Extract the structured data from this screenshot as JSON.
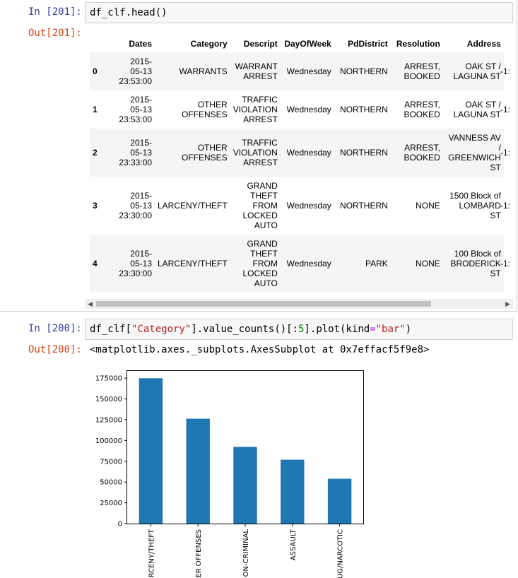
{
  "cell1": {
    "in_prompt": "In [201]:",
    "code": "df_clf.head()",
    "out_prompt": "Out[201]:",
    "columns": [
      "Dates",
      "Category",
      "Descript",
      "DayOfWeek",
      "PdDistrict",
      "Resolution",
      "Address"
    ],
    "rows": [
      {
        "index": "0",
        "cells": [
          [
            "2015-",
            "05-13",
            "23:53:00"
          ],
          [
            "WARRANTS"
          ],
          [
            "WARRANT",
            "ARREST"
          ],
          [
            "Wednesday"
          ],
          [
            "NORTHERN"
          ],
          [
            "ARREST,",
            "BOOKED"
          ],
          [
            "OAK ST /",
            "LAGUNA ST"
          ]
        ],
        "cut": "-1:"
      },
      {
        "index": "1",
        "cells": [
          [
            "2015-",
            "05-13",
            "23:53:00"
          ],
          [
            "OTHER",
            "OFFENSES"
          ],
          [
            "TRAFFIC",
            "VIOLATION",
            "ARREST"
          ],
          [
            "Wednesday"
          ],
          [
            "NORTHERN"
          ],
          [
            "ARREST,",
            "BOOKED"
          ],
          [
            "OAK ST /",
            "LAGUNA ST"
          ]
        ],
        "cut": "-1:"
      },
      {
        "index": "2",
        "cells": [
          [
            "2015-",
            "05-13",
            "23:33:00"
          ],
          [
            "OTHER",
            "OFFENSES"
          ],
          [
            "TRAFFIC",
            "VIOLATION",
            "ARREST"
          ],
          [
            "Wednesday"
          ],
          [
            "NORTHERN"
          ],
          [
            "ARREST,",
            "BOOKED"
          ],
          [
            "VANNESS AV",
            "/",
            "GREENWICH",
            "ST"
          ]
        ],
        "cut": "-1:"
      },
      {
        "index": "3",
        "cells": [
          [
            "2015-",
            "05-13",
            "23:30:00"
          ],
          [
            "LARCENY/THEFT"
          ],
          [
            "GRAND",
            "THEFT",
            "FROM",
            "LOCKED",
            "AUTO"
          ],
          [
            "Wednesday"
          ],
          [
            "NORTHERN"
          ],
          [
            "NONE"
          ],
          [
            "1500 Block of",
            "LOMBARD",
            "ST"
          ]
        ],
        "cut": "-1:"
      },
      {
        "index": "4",
        "cells": [
          [
            "2015-",
            "05-13",
            "23:30:00"
          ],
          [
            "LARCENY/THEFT"
          ],
          [
            "GRAND",
            "THEFT",
            "FROM",
            "LOCKED",
            "AUTO"
          ],
          [
            "Wednesday"
          ],
          [
            "PARK"
          ],
          [
            "NONE"
          ],
          [
            "100 Block of",
            "BRODERICK",
            "ST"
          ]
        ],
        "cut": "-1:"
      }
    ]
  },
  "cell2": {
    "in_prompt": "In [200]:",
    "code_parts": [
      {
        "text": "df_clf[",
        "color": "#000000"
      },
      {
        "text": "\"Category\"",
        "color": "#ba2121"
      },
      {
        "text": "].value_counts()[:",
        "color": "#000000"
      },
      {
        "text": "5",
        "color": "#008800"
      },
      {
        "text": "].plot(kind",
        "color": "#000000"
      },
      {
        "text": "=",
        "color": "#aa22ff"
      },
      {
        "text": "\"bar\"",
        "color": "#ba2121"
      },
      {
        "text": ")",
        "color": "#000000"
      }
    ],
    "out_prompt": "Out[200]:",
    "repr": "<matplotlib.axes._subplots.AxesSubplot at 0x7effacf5f9e8>"
  },
  "chart_data": {
    "type": "bar",
    "categories": [
      "LARCENY/THEFT",
      "OTHER OFFENSES",
      "NON-CRIMINAL",
      "ASSAULT",
      "DRUG/NARCOTIC"
    ],
    "visible_labels": [
      "RCENY/THEFT",
      "ER OFFENSES",
      "ON-CRIMINAL",
      "ASSAULT",
      "UG/NARCOTIC"
    ],
    "values": [
      174900,
      126182,
      92304,
      76876,
      53971
    ],
    "yticks": [
      0,
      25000,
      50000,
      75000,
      100000,
      125000,
      150000,
      175000
    ],
    "ylim": [
      0,
      183645
    ],
    "bar_color": "#1f77b4",
    "grid": false
  }
}
